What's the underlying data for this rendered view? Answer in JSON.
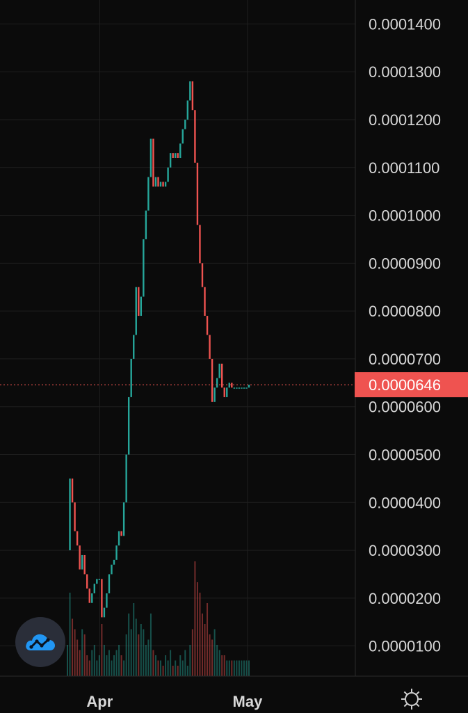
{
  "chart_data": {
    "type": "line",
    "title": "",
    "xlabel": "",
    "ylabel": "",
    "x_tick_labels": [
      "Apr",
      "May"
    ],
    "y_tick_labels": [
      "0.0000100",
      "0.0000200",
      "0.0000300",
      "0.0000400",
      "0.0000500",
      "0.0000600",
      "0.0000700",
      "0.0000800",
      "0.0000900",
      "0.0001000",
      "0.0001100",
      "0.0001200",
      "0.0001300",
      "0.0001400"
    ],
    "ylim": [
      3.7e-06,
      0.000145
    ],
    "grid": true,
    "current_price": "0.0000646",
    "current_price_value": 6.46e-05,
    "colors": {
      "up": "#26a69a",
      "down": "#ef5350",
      "price_tag": "#ef5350",
      "grid": "#1f1f1f"
    },
    "series": [
      {
        "x": [
          "Mar 26",
          "Mar 26",
          "Mar 27",
          "Mar 27",
          "Mar 28",
          "Mar 28",
          "Mar 29",
          "Mar 29",
          "Mar 30",
          "Mar 30",
          "Mar 31",
          "Mar 31",
          "Apr 1",
          "Apr 1",
          "Apr 2",
          "Apr 2",
          "Apr 3",
          "Apr 3",
          "Apr 4",
          "Apr 4",
          "Apr 5",
          "Apr 5",
          "Apr 6",
          "Apr 6",
          "Apr 7",
          "Apr 7",
          "Apr 8",
          "Apr 8",
          "Apr 9",
          "Apr 9",
          "Apr 10",
          "Apr 10",
          "Apr 11",
          "Apr 11",
          "Apr 12",
          "Apr 12",
          "Apr 13",
          "Apr 13",
          "Apr 14",
          "Apr 14",
          "Apr 15",
          "Apr 15",
          "Apr 16",
          "Apr 16",
          "Apr 17",
          "Apr 17",
          "Apr 18",
          "Apr 18",
          "Apr 19",
          "Apr 19",
          "Apr 20",
          "Apr 20",
          "Apr 21",
          "Apr 21",
          "Apr 22",
          "Apr 22",
          "Apr 23",
          "Apr 23",
          "Apr 24",
          "Apr 24",
          "Apr 25",
          "Apr 25",
          "Apr 26",
          "Apr 26",
          "Apr 27",
          "Apr 27",
          "Apr 28",
          "Apr 28",
          "Apr 29",
          "Apr 29",
          "Apr 30",
          "Apr 30",
          "May 1",
          "May 1",
          "May 2"
        ],
        "values": [
          3e-05,
          4.5e-05,
          4e-05,
          3.4e-05,
          3.1e-05,
          2.6e-05,
          2.9e-05,
          2.5e-05,
          2.2e-05,
          1.9e-05,
          2.1e-05,
          2.3e-05,
          2.4e-05,
          2.4e-05,
          1.6e-05,
          1.8e-05,
          2.1e-05,
          2.5e-05,
          2.7e-05,
          2.8e-05,
          3.1e-05,
          3.4e-05,
          3.3e-05,
          4e-05,
          5e-05,
          6.2e-05,
          7e-05,
          7.5e-05,
          8.5e-05,
          7.9e-05,
          8.3e-05,
          9.5e-05,
          0.000101,
          0.000108,
          0.000116,
          0.000106,
          0.000108,
          0.000106,
          0.000107,
          0.000106,
          0.000107,
          0.00011,
          0.000113,
          0.000112,
          0.000113,
          0.000112,
          0.000115,
          0.000118,
          0.00012,
          0.000124,
          0.000128,
          0.000122,
          0.000111,
          9.8e-05,
          9e-05,
          8.5e-05,
          7.9e-05,
          7.5e-05,
          7e-05,
          6.1e-05,
          6.4e-05,
          6.6e-05,
          6.9e-05,
          6.4e-05,
          6.2e-05,
          6.4e-05,
          6.5e-05,
          6.4e-05,
          6.4e-05,
          6.4e-05,
          6.4e-05,
          6.4e-05,
          6.4e-05,
          6.4e-05,
          6.46e-05
        ]
      }
    ],
    "volume": [
      6,
      16,
      11,
      9,
      7,
      5,
      9,
      8,
      4,
      3,
      5,
      6,
      3,
      4,
      10,
      6,
      4,
      5,
      3,
      4,
      5,
      6,
      4,
      3,
      8,
      12,
      9,
      14,
      11,
      8,
      10,
      9,
      6,
      7,
      12,
      5,
      4,
      3,
      3,
      2,
      4,
      3,
      5,
      2,
      3,
      2,
      4,
      3,
      5,
      2,
      6,
      9,
      22,
      18,
      16,
      12,
      10,
      14,
      8,
      7,
      9,
      6,
      5,
      4,
      4,
      3,
      3,
      3,
      3,
      3,
      3,
      3,
      3,
      3,
      3
    ]
  },
  "ui": {
    "logo_icon": "cloud-chart-icon",
    "settings_icon": "gear-icon"
  }
}
